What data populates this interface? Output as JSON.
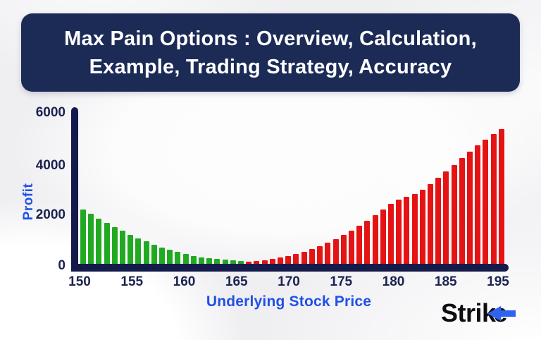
{
  "title_banner": {
    "line1": "Max Pain Options : Overview, Calculation,",
    "line2": "Example, Trading Strategy, Accuracy"
  },
  "chart_data": {
    "type": "bar",
    "title": "",
    "xlabel": "Underlying Stock Price",
    "ylabel": "Profit",
    "x_tick_labels": [
      "150",
      "155",
      "160",
      "165",
      "170",
      "175",
      "180",
      "185",
      "195"
    ],
    "y_tick_labels": [
      "6000",
      "4000",
      "2000",
      "0"
    ],
    "ylim": [
      0,
      6000
    ],
    "grid": false,
    "legend": "none",
    "series": [
      {
        "name": "profit-declining-green",
        "color": "#21aa21",
        "values": [
          2150,
          1960,
          1780,
          1610,
          1450,
          1295,
          1150,
          1010,
          880,
          760,
          650,
          550,
          460,
          385,
          320,
          265,
          220,
          185,
          155,
          130,
          110
        ]
      },
      {
        "name": "profit-rising-red",
        "color": "#e51313",
        "values": [
          80,
          110,
          150,
          195,
          250,
          315,
          395,
          485,
          585,
          700,
          830,
          975,
          1135,
          1310,
          1500,
          1700,
          1910,
          2130,
          2360,
          2540,
          2650,
          2760,
          2930,
          3140,
          3380,
          3640,
          3900,
          4160,
          4420,
          4660,
          4890,
          5100,
          5300
        ]
      }
    ]
  },
  "logo": {
    "part_stri": "Stri",
    "part_k": "k",
    "part_e": "e",
    "arrow_color": "#2e63f0"
  },
  "colors": {
    "banner_bg": "#1c2a56",
    "axis": "#141b4b",
    "tick_text": "#1c2350",
    "accent_blue": "#1f51e8",
    "background": "#efeef1"
  }
}
